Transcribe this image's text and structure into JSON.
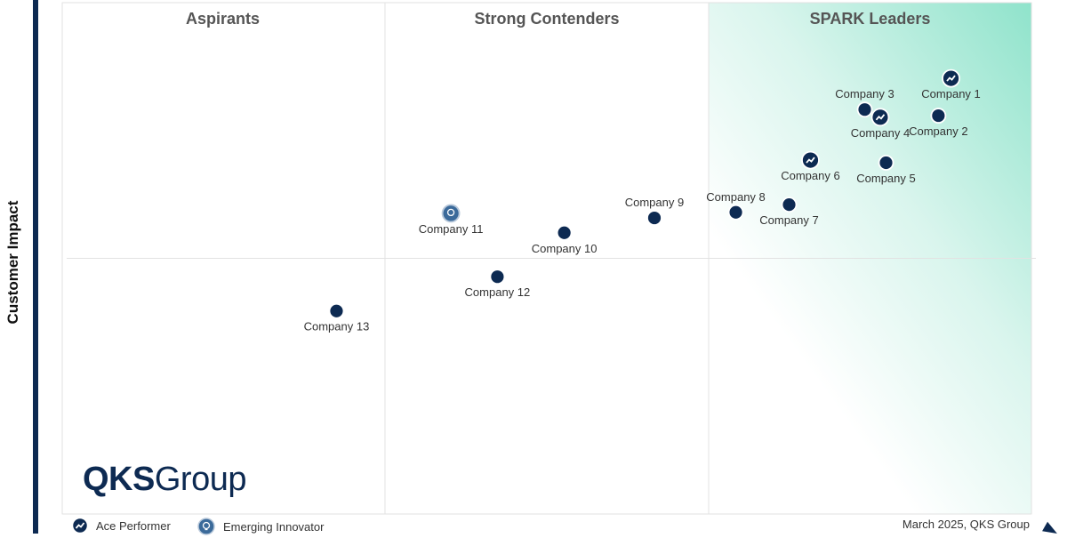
{
  "chart_data": {
    "type": "scatter",
    "title": "",
    "ylabel": "Customer Impact",
    "xlabel": "",
    "xlim": [
      0,
      100
    ],
    "ylim": [
      0,
      100
    ],
    "grid": false,
    "quadrant_dividers": {
      "x": [
        33.3,
        66.7
      ],
      "y": [
        50
      ]
    },
    "quadrant_titles": [
      "Aspirants",
      "Strong Contenders",
      "SPARK Leaders"
    ],
    "legend_position": "bottom-left",
    "legend": [
      {
        "label": "Ace Performer",
        "icon": "trend-line-icon"
      },
      {
        "label": "Emerging Innovator",
        "icon": "lightbulb-icon"
      }
    ],
    "colors": {
      "marker": "#0d2a52",
      "innovator": "#3b6a9a",
      "leader_gradient": "#9de6d0",
      "axis": "#0d2a52"
    },
    "points": [
      {
        "name": "Company 1",
        "x": 91.7,
        "y": 85.2,
        "type": "ace"
      },
      {
        "name": "Company 2",
        "x": 90.4,
        "y": 77.9,
        "type": "normal"
      },
      {
        "name": "Company 3",
        "x": 82.8,
        "y": 79.1,
        "type": "normal"
      },
      {
        "name": "Company 4",
        "x": 84.4,
        "y": 77.6,
        "type": "ace"
      },
      {
        "name": "Company 5",
        "x": 85.0,
        "y": 68.7,
        "type": "normal"
      },
      {
        "name": "Company 6",
        "x": 77.2,
        "y": 69.2,
        "type": "ace"
      },
      {
        "name": "Company 7",
        "x": 75.0,
        "y": 60.5,
        "type": "normal"
      },
      {
        "name": "Company 8",
        "x": 69.5,
        "y": 59.0,
        "type": "normal"
      },
      {
        "name": "Company 9",
        "x": 61.1,
        "y": 57.9,
        "type": "normal"
      },
      {
        "name": "Company 10",
        "x": 51.8,
        "y": 55.0,
        "type": "normal"
      },
      {
        "name": "Company 11",
        "x": 40.1,
        "y": 58.8,
        "type": "innovator"
      },
      {
        "name": "Company 12",
        "x": 44.9,
        "y": 46.4,
        "type": "normal"
      },
      {
        "name": "Company 13",
        "x": 28.3,
        "y": 39.7,
        "type": "normal"
      }
    ]
  },
  "logo": {
    "bold": "QKS",
    "light": "Group"
  },
  "footer": "March 2025, QKS Group"
}
